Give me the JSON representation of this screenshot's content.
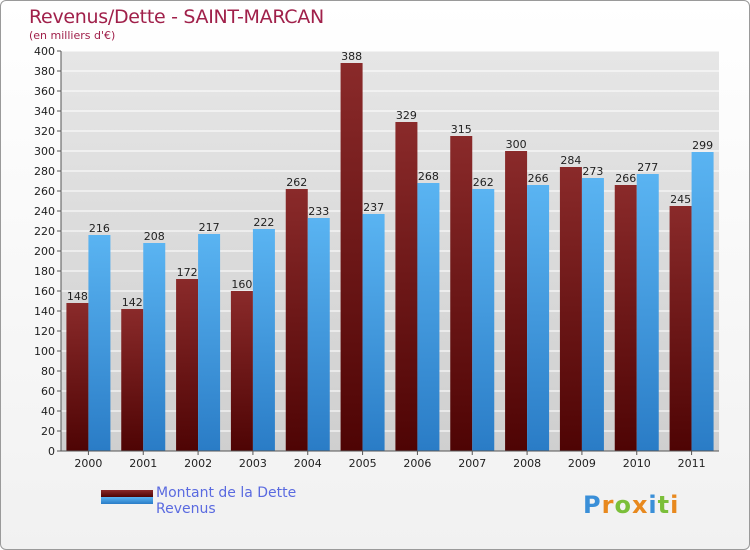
{
  "header": {
    "title": "Revenus/Dette - SAINT-MARCAN",
    "subtitle": "(en milliers d'€)"
  },
  "legend": {
    "items": [
      {
        "label": "Montant de la Dette",
        "color": "#6e1010"
      },
      {
        "label": "Revenus",
        "color": "#4aa3e6"
      }
    ]
  },
  "brand": {
    "letters": [
      "P",
      "r",
      "o",
      "x",
      "i",
      "t",
      "i"
    ],
    "colors": [
      "#3a8fd8",
      "#e8891e",
      "#7bbf3a",
      "#e8891e",
      "#3a8fd8",
      "#7bbf3a",
      "#e8891e"
    ]
  },
  "chart_data": {
    "type": "bar",
    "title": "Revenus/Dette - SAINT-MARCAN",
    "subtitle": "(en milliers d'€)",
    "categories": [
      "2000",
      "2001",
      "2002",
      "2003",
      "2004",
      "2005",
      "2006",
      "2007",
      "2008",
      "2009",
      "2010",
      "2011"
    ],
    "series": [
      {
        "name": "Montant de la Dette",
        "values": [
          148,
          142,
          172,
          160,
          262,
          388,
          329,
          315,
          300,
          284,
          266,
          245
        ],
        "color": "#7a1a1a"
      },
      {
        "name": "Revenus",
        "values": [
          216,
          208,
          217,
          222,
          233,
          237,
          268,
          262,
          266,
          273,
          277,
          299
        ],
        "color": "#4aa3e6"
      }
    ],
    "ylim": [
      0,
      400
    ],
    "ytick_step": 20,
    "grid": true,
    "legend_position": "bottom-left"
  }
}
